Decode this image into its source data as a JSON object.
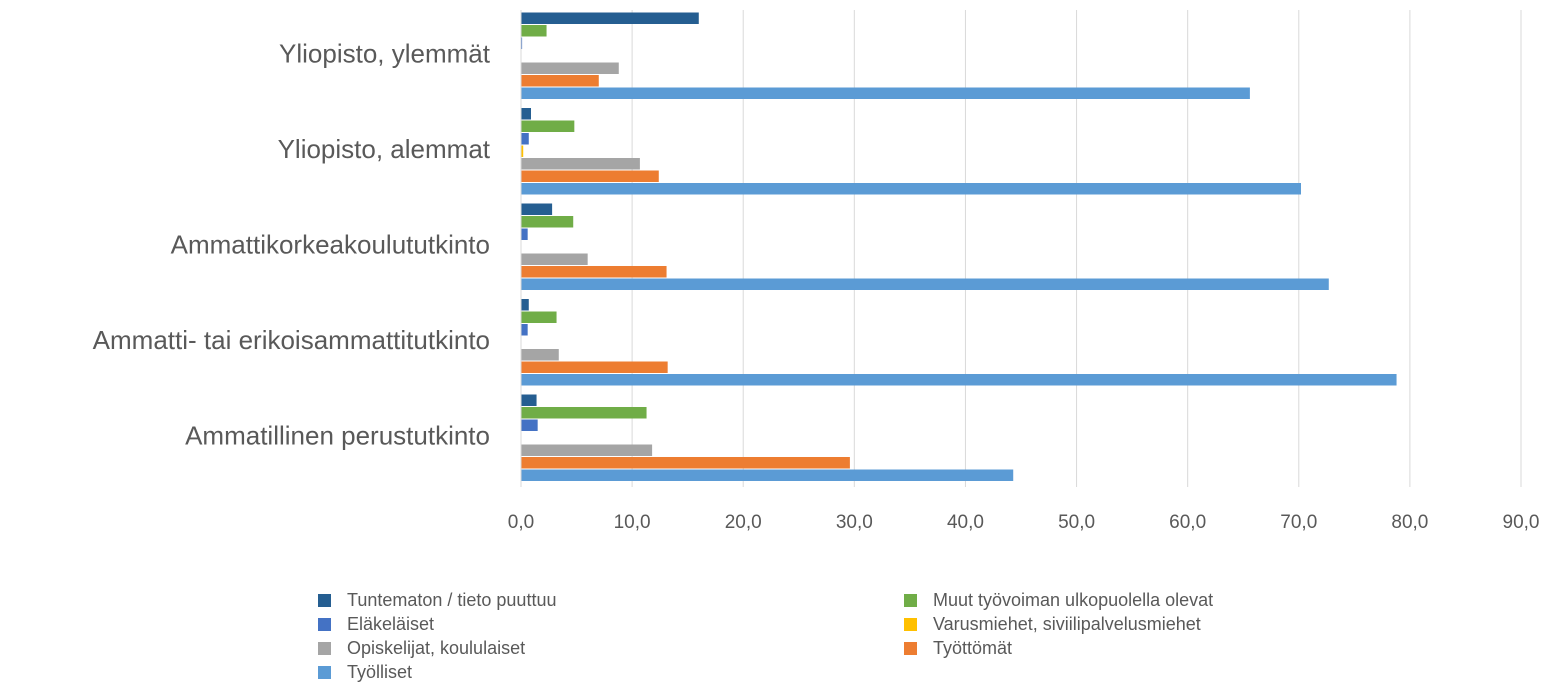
{
  "chart_data": {
    "type": "bar",
    "orientation": "horizontal",
    "categories": [
      "Ammatillinen perustutkinto",
      "Ammatti- tai erikoisammattitutkinto",
      "Ammattikorkeakoulututkinto",
      "Yliopisto, alemmat",
      "Yliopisto, ylemmät"
    ],
    "series": [
      {
        "name": "Työlliset",
        "color": "#5B9BD5",
        "values": [
          44.3,
          78.8,
          72.7,
          70.2,
          65.6
        ]
      },
      {
        "name": "Työttömät",
        "color": "#ED7D31",
        "values": [
          29.6,
          13.2,
          13.1,
          12.4,
          7.0
        ]
      },
      {
        "name": "Opiskelijat, koululaiset",
        "color": "#A5A5A5",
        "values": [
          11.8,
          3.4,
          6.0,
          10.7,
          8.8
        ]
      },
      {
        "name": "Varusmiehet, siviilipalvelusmiehet",
        "color": "#FFC000",
        "values": [
          0.0,
          0.0,
          0.0,
          0.2,
          0.0
        ]
      },
      {
        "name": "Eläkeläiset",
        "color": "#4472C4",
        "values": [
          1.5,
          0.6,
          0.6,
          0.7,
          0.1
        ]
      },
      {
        "name": "Muut työvoiman ulkopuolella olevat",
        "color": "#70AD47",
        "values": [
          11.3,
          3.2,
          4.7,
          4.8,
          2.3
        ]
      },
      {
        "name": "Tuntematon / tieto puuttuu",
        "color": "#255E91",
        "values": [
          1.4,
          0.7,
          2.8,
          0.9,
          16.0
        ]
      }
    ],
    "xlim": [
      0,
      90
    ],
    "xticks": [
      "0,0",
      "10,0",
      "20,0",
      "30,0",
      "40,0",
      "50,0",
      "60,0",
      "70,0",
      "80,0",
      "90,0"
    ],
    "grid": "vertical",
    "legend": {
      "position": "bottom",
      "order": [
        "Tuntematon / tieto puuttuu",
        "Muut työvoiman ulkopuolella olevat",
        "Eläkeläiset",
        "Varusmiehet, siviilipalvelusmiehet",
        "Opiskelijat, koululaiset",
        "Työttömät",
        "Työlliset"
      ]
    },
    "title": "",
    "xlabel": "",
    "ylabel": ""
  }
}
